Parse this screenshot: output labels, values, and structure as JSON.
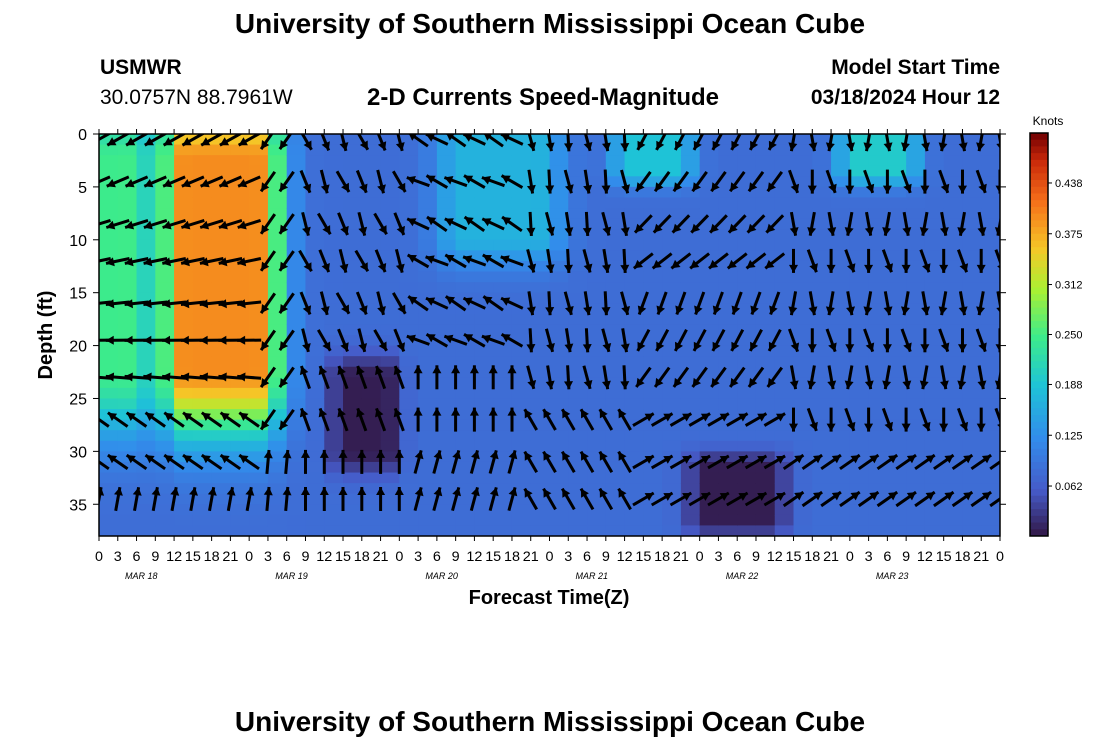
{
  "header": {
    "title": "University of Southern Mississippi Ocean Cube",
    "station_id": "USMWR",
    "station_coords": "30.0757N  88.7961W",
    "plot_title": "2-D Currents Speed-Magnitude",
    "model_label": "Model Start Time",
    "model_time": "03/18/2024 Hour 12"
  },
  "footer": {
    "title": "University of Southern Mississippi Ocean Cube"
  },
  "chart_data": {
    "type": "heatmap",
    "title": "2-D Currents Speed-Magnitude",
    "xlabel": "Forecast Time(Z)",
    "ylabel": "Depth (ft)",
    "y_ticks": [
      0,
      5,
      10,
      15,
      20,
      25,
      30,
      35
    ],
    "ylim": [
      0,
      38
    ],
    "y_inverted": true,
    "x_tick_labels": [
      "0",
      "3",
      "6",
      "9",
      "12",
      "15",
      "18",
      "21",
      "0",
      "3",
      "6",
      "9",
      "12",
      "15",
      "18",
      "21",
      "0",
      "3",
      "6",
      "9",
      "12",
      "15",
      "18",
      "21",
      "0",
      "3",
      "6",
      "9",
      "12",
      "15",
      "18",
      "21",
      "0",
      "3",
      "6",
      "9",
      "12",
      "15",
      "18",
      "21",
      "0",
      "3",
      "6",
      "9",
      "12",
      "15",
      "18",
      "21",
      "0"
    ],
    "x_tick_label_text": "0 3 6 9 12151821 0 3 6 9 12151821 0 3 6 9 12151821 0 3 6 9 12151821 0 3 6 9 12151821 0 3 6 9 12151821 0",
    "x_hours": [
      0,
      144
    ],
    "date_labels": [
      {
        "label": "MAR 18",
        "hour": 9
      },
      {
        "label": "MAR 19",
        "hour": 33
      },
      {
        "label": "MAR 20",
        "hour": 57
      },
      {
        "label": "MAR 21",
        "hour": 81
      },
      {
        "label": "MAR 22",
        "hour": 105
      },
      {
        "label": "MAR 23",
        "hour": 129
      }
    ],
    "colorbar": {
      "label": "Knots",
      "min": 0.0,
      "max": 0.5,
      "ticks": [
        0.062,
        0.125,
        0.188,
        0.25,
        0.312,
        0.375,
        0.438
      ],
      "tick_labels": [
        "0.062",
        "0.125",
        "0.188",
        "0.250",
        "0.312",
        "0.375",
        "0.438"
      ]
    },
    "speed_regions_knots": [
      {
        "hours": [
          0,
          6
        ],
        "depth_ft": [
          0,
          25
        ],
        "speed": 0.25
      },
      {
        "hours": [
          12,
          27
        ],
        "depth_ft": [
          0,
          25
        ],
        "speed": 0.4
      },
      {
        "hours": [
          39,
          46
        ],
        "depth_ft": [
          23,
          30
        ],
        "speed": 0.01
      },
      {
        "hours": [
          56,
          72
        ],
        "depth_ft": [
          0,
          10
        ],
        "speed": 0.17
      },
      {
        "hours": [
          84,
          93
        ],
        "depth_ft": [
          0,
          3
        ],
        "speed": 0.19
      },
      {
        "hours": [
          96,
          108
        ],
        "depth_ft": [
          32,
          36
        ],
        "speed": 0.01
      },
      {
        "hours": [
          120,
          129
        ],
        "depth_ft": [
          0,
          3
        ],
        "speed": 0.2
      }
    ],
    "vector_field": {
      "time_step_hours": 3,
      "depths_ft": [
        0.5,
        4.5,
        8.5,
        12.0,
        16.0,
        19.5,
        23.0,
        27.0,
        31.0,
        34.5
      ],
      "note_units": "arrow direction in degrees, 0 = up, clockwise"
    }
  }
}
